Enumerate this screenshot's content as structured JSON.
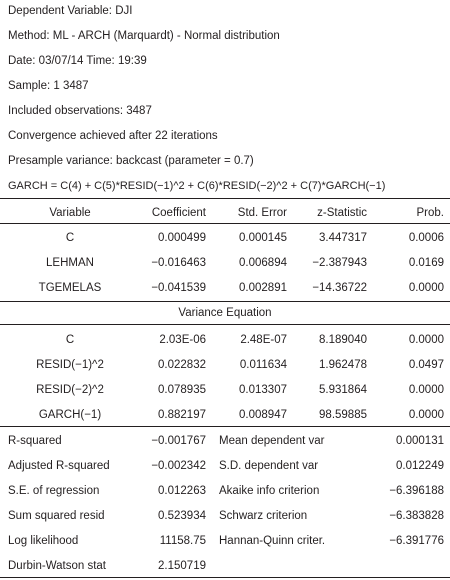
{
  "header": {
    "dependent_variable": "Dependent Variable: DJI",
    "method": "Method: ML - ARCH (Marquardt) - Normal distribution",
    "date": "Date: 03/07/14 Time: 19:39",
    "sample": "Sample: 1 3487",
    "included_observations": "Included observations: 3487",
    "convergence": "Convergence achieved after 22 iterations",
    "presample": "Presample variance: backcast (parameter = 0.7)",
    "garch_equation": "GARCH = C(4) + C(5)*RESID(−1)^2 + C(6)*RESID(−2)^2 + C(7)*GARCH(−1)"
  },
  "columns": {
    "variable": "Variable",
    "coefficient": "Coefficient",
    "std_error": "Std. Error",
    "z_statistic": "z-Statistic",
    "prob": "Prob."
  },
  "mean_equation": [
    {
      "variable": "C",
      "coefficient": "0.000499",
      "std_error": "0.000145",
      "z_statistic": "3.447317",
      "prob": "0.0006"
    },
    {
      "variable": "LEHMAN",
      "coefficient": "−0.016463",
      "std_error": "0.006894",
      "z_statistic": "−2.387943",
      "prob": "0.0169"
    },
    {
      "variable": "TGEMELAS",
      "coefficient": "−0.041539",
      "std_error": "0.002891",
      "z_statistic": "−14.36722",
      "prob": "0.0000"
    }
  ],
  "variance_equation_title": "Variance Equation",
  "variance_equation": [
    {
      "variable": "C",
      "coefficient": "2.03E-06",
      "std_error": "2.48E-07",
      "z_statistic": "8.189040",
      "prob": "0.0000"
    },
    {
      "variable": "RESID(−1)^2",
      "coefficient": "0.022832",
      "std_error": "0.011634",
      "z_statistic": "1.962478",
      "prob": "0.0497"
    },
    {
      "variable": "RESID(−2)^2",
      "coefficient": "0.078935",
      "std_error": "0.013307",
      "z_statistic": "5.931864",
      "prob": "0.0000"
    },
    {
      "variable": "GARCH(−1)",
      "coefficient": "0.882197",
      "std_error": "0.008947",
      "z_statistic": "98.59885",
      "prob": "0.0000"
    }
  ],
  "statistics": [
    {
      "label": "R-squared",
      "value": "−0.001767",
      "label2": "Mean dependent var",
      "value2": "0.000131"
    },
    {
      "label": "Adjusted R-squared",
      "value": "−0.002342",
      "label2": "S.D. dependent var",
      "value2": "0.012249"
    },
    {
      "label": "S.E. of regression",
      "value": "0.012263",
      "label2": "Akaike info criterion",
      "value2": "−6.396188"
    },
    {
      "label": "Sum squared resid",
      "value": "0.523934",
      "label2": "Schwarz criterion",
      "value2": "−6.383828"
    },
    {
      "label": "Log likelihood",
      "value": "11158.75",
      "label2": "Hannan-Quinn criter.",
      "value2": "−6.391776"
    },
    {
      "label": "Durbin-Watson stat",
      "value": "2.150719",
      "label2": "",
      "value2": ""
    }
  ]
}
